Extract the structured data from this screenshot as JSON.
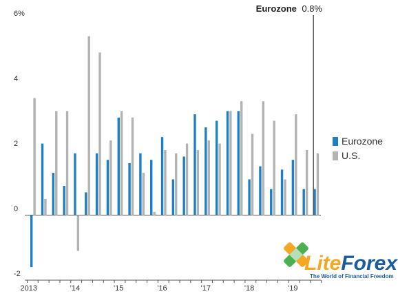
{
  "chart_data": {
    "type": "bar",
    "series": [
      {
        "name": "Eurozone",
        "color": "#1f7fc4",
        "values": [
          -1.6,
          2.2,
          1.3,
          0.9,
          1.9,
          0.7,
          1.9,
          1.7,
          3.0,
          1.6,
          1.9,
          1.7,
          2.4,
          1.1,
          1.8,
          3.1,
          2.7,
          2.9,
          3.2,
          3.2,
          1.1,
          1.5,
          0.8,
          1.4,
          1.7,
          0.8,
          0.8
        ]
      },
      {
        "name": "U.S.",
        "color": "#b3b3b3",
        "values": [
          3.6,
          0.5,
          3.2,
          3.2,
          -1.1,
          5.5,
          5.0,
          2.3,
          3.2,
          3.0,
          1.3,
          0.1,
          2.0,
          1.9,
          2.2,
          2.0,
          2.3,
          2.2,
          3.2,
          3.5,
          2.5,
          3.5,
          2.9,
          1.1,
          3.1,
          2.0,
          1.9
        ]
      }
    ],
    "x_tick_labels": [
      {
        "label": "2013",
        "index": 0
      },
      {
        "label": "'14",
        "index": 4
      },
      {
        "label": "'15",
        "index": 8
      },
      {
        "label": "'16",
        "index": 12
      },
      {
        "label": "'17",
        "index": 16
      },
      {
        "label": "'18",
        "index": 20
      },
      {
        "label": "'19",
        "index": 24
      }
    ],
    "y_ticks": [
      "6%",
      "4",
      "2",
      "0",
      "-2"
    ],
    "y_tick_values": [
      6,
      4,
      2,
      0,
      -2
    ],
    "ylim": [
      -2,
      6.2
    ],
    "annotation": {
      "label": "Eurozone",
      "value": "0.8%"
    },
    "legend_position": "right",
    "grid": false
  },
  "logo": {
    "brand_part1": "Lite",
    "brand_part2": "Forex",
    "tagline": "The World of Financial Freedom"
  }
}
